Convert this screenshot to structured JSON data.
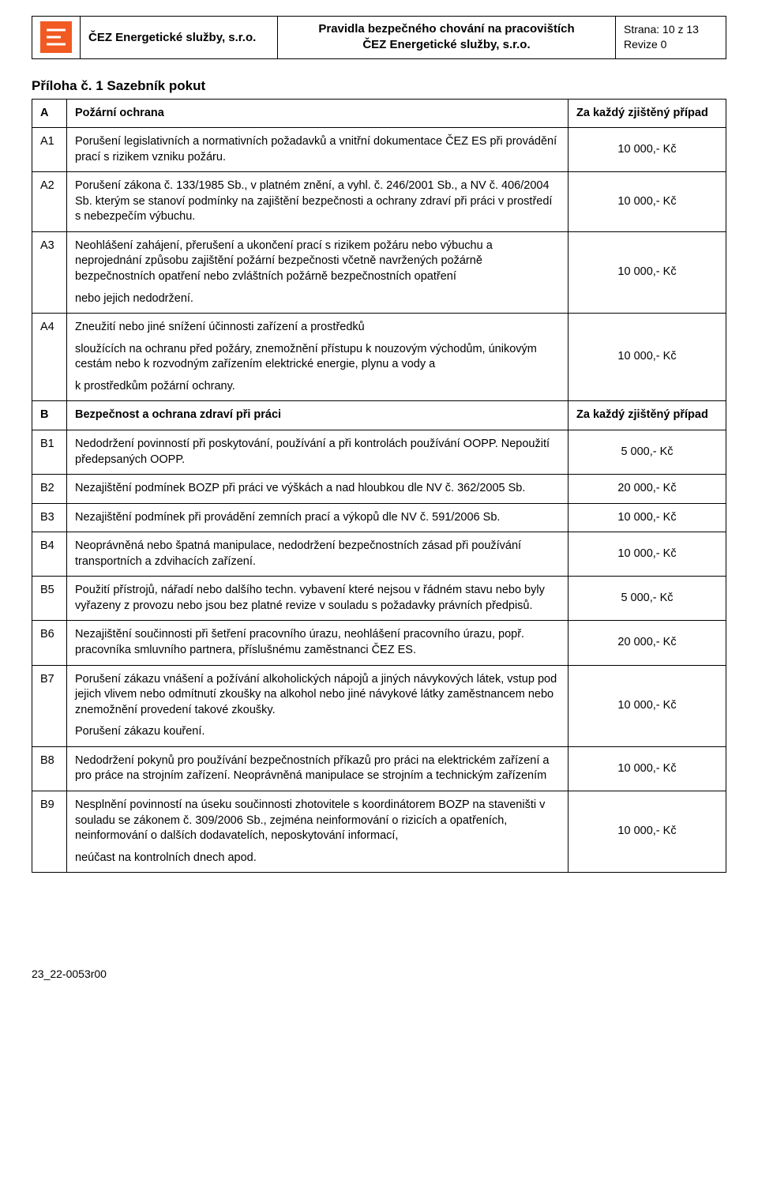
{
  "header": {
    "company": "ČEZ Energetické služby, s.r.o.",
    "title_line1": "Pravidla bezpečného chování na pracovištích",
    "title_line2": "ČEZ Energetické služby, s.r.o.",
    "page": "Strana: 10 z 13",
    "revision": "Revize 0"
  },
  "logo": {
    "bg": "#f15a22",
    "stroke": "#ffffff"
  },
  "section_title": "Příloha č. 1 Sazebník pokut",
  "header_right_label": "Za každý zjištěný případ",
  "footer": "23_22-0053r00",
  "rows": [
    {
      "code": "A",
      "text": "Požární ochrana",
      "amount": "Za každý zjištěný případ",
      "header": true
    },
    {
      "code": "A1",
      "text": "Porušení legislativních a normativních požadavků a vnitřní dokumentace ČEZ ES při provádění prací s rizikem vzniku požáru.",
      "amount": "10 000,- Kč"
    },
    {
      "code": "A2",
      "text": "Porušení zákona č. 133/1985 Sb., v platném znění, a vyhl. č. 246/2001 Sb., a NV č. 406/2004 Sb. kterým se stanoví podmínky na zajištění bezpečnosti a ochrany zdraví při práci v prostředí s nebezpečím výbuchu.",
      "amount": "10 000,- Kč"
    },
    {
      "code": "A3",
      "paras": [
        "Neohlášení zahájení, přerušení a ukončení prací s rizikem požáru nebo výbuchu a neprojednání způsobu zajištění požární bezpečnosti včetně navržených požárně bezpečnostních opatření nebo zvláštních požárně bezpečnostních opatření",
        "nebo jejich nedodržení."
      ],
      "amount": "10 000,- Kč"
    },
    {
      "code": "A4",
      "paras": [
        "Zneužití nebo jiné snížení účinnosti zařízení a prostředků",
        "sloužících na ochranu před požáry, znemožnění přístupu k nouzovým východům, únikovým cestám nebo k rozvodným zařízením elektrické energie, plynu a vody a",
        "k prostředkům požární ochrany."
      ],
      "amount": "10 000,- Kč"
    },
    {
      "code": "B",
      "text": "Bezpečnost a ochrana zdraví při práci",
      "amount": "Za každý zjištěný případ",
      "header": true
    },
    {
      "code": "B1",
      "text": "Nedodržení povinností při poskytování, používání a při kontrolách používání OOPP. Nepoužití předepsaných OOPP.",
      "amount": "5 000,- Kč"
    },
    {
      "code": "B2",
      "text": "Nezajištění podmínek BOZP při práci ve výškách a nad hloubkou dle NV č. 362/2005 Sb.",
      "amount": "20 000,- Kč"
    },
    {
      "code": "B3",
      "text": "Nezajištění podmínek při provádění zemních prací a výkopů dle NV č. 591/2006 Sb.",
      "amount": "10 000,- Kč"
    },
    {
      "code": "B4",
      "text": "Neoprávněná nebo špatná manipulace, nedodržení bezpečnostních zásad při používání transportních a zdvihacích zařízení.",
      "amount": "10 000,- Kč"
    },
    {
      "code": "B5",
      "text": "Použití přístrojů, nářadí nebo dalšího techn. vybavení které nejsou v řádném stavu nebo byly vyřazeny z provozu nebo jsou bez platné revize v souladu s požadavky právních předpisů.",
      "amount": "5 000,- Kč"
    },
    {
      "code": "B6",
      "text": "Nezajištění součinnosti při šetření pracovního úrazu, neohlášení pracovního úrazu, popř. pracovníka smluvního partnera, příslušnému zaměstnanci ČEZ ES.",
      "amount": "20 000,- Kč"
    },
    {
      "code": "B7",
      "paras": [
        "Porušení zákazu vnášení a požívání alkoholických nápojů a jiných návykových látek, vstup pod jejich vlivem nebo odmítnutí zkoušky na alkohol nebo jiné návykové látky zaměstnancem nebo znemožnění provedení takové zkoušky.",
        "Porušení zákazu kouření."
      ],
      "amount": "10 000,- Kč"
    },
    {
      "code": "B8",
      "text": "Nedodržení pokynů pro používání bezpečnostních příkazů pro práci na elektrickém zařízení a pro práce na strojním zařízení. Neoprávněná manipulace se strojním a technickým zařízením",
      "amount": "10 000,- Kč"
    },
    {
      "code": "B9",
      "paras": [
        "Nesplnění povinností na úseku součinnosti zhotovitele s koordinátorem BOZP na staveništi v souladu se zákonem č. 309/2006 Sb., zejména neinformování o rizicích a opatřeních, neinformování o dalších dodavatelích, neposkytování informací,",
        "neúčast na kontrolních dnech apod."
      ],
      "amount": "10 000,- Kč"
    }
  ]
}
